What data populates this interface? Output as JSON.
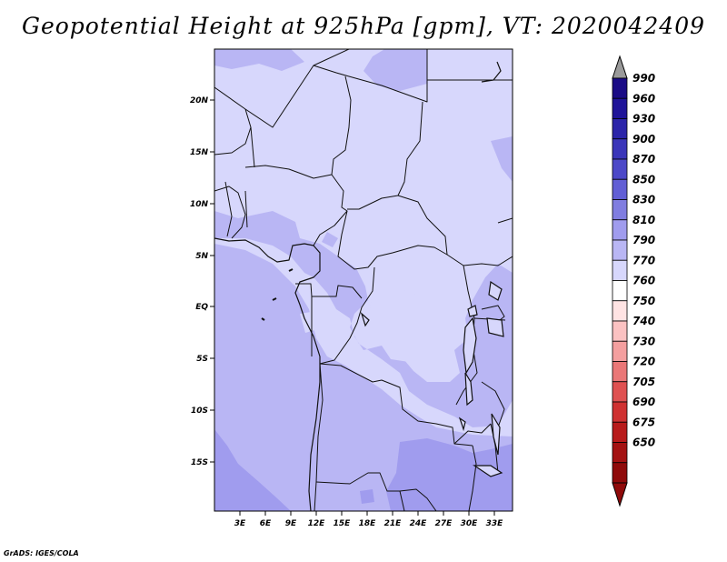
{
  "title": "Geopotential Height at 925hPa [gpm], VT: 2020042409",
  "credit": "GrADS: IGES/COLA",
  "map": {
    "lat_labels": [
      "20N",
      "15N",
      "10N",
      "5N",
      "EQ",
      "5S",
      "10S",
      "15S"
    ],
    "lon_labels": [
      "3E",
      "6E",
      "9E",
      "12E",
      "15E",
      "18E",
      "21E",
      "24E",
      "27E",
      "30E",
      "33E"
    ],
    "field_colors": {
      "790_to_810": "#d7d7fc",
      "810_to_830": "#b9b6f4",
      "830_to_850": "#a09cee"
    }
  },
  "colorbar": {
    "levels": [
      "990",
      "960",
      "930",
      "900",
      "870",
      "850",
      "830",
      "810",
      "790",
      "770",
      "760",
      "750",
      "740",
      "730",
      "720",
      "705",
      "690",
      "675",
      "650"
    ],
    "colors": [
      "#1a0b86",
      "#1f1499",
      "#2b24a9",
      "#3a35b9",
      "#4c48c8",
      "#625fd5",
      "#807de0",
      "#a09cee",
      "#b9b6f4",
      "#d7d7fc",
      "#ffffff",
      "#ffe3e3",
      "#fbc2c2",
      "#f49f9f",
      "#ea7777",
      "#df5151",
      "#cf3131",
      "#b81b1b",
      "#a41212",
      "#8f0a0a"
    ],
    "top_arrow_color": "#9a9a9a",
    "bottom_arrow_color": "#8f0a0a"
  }
}
